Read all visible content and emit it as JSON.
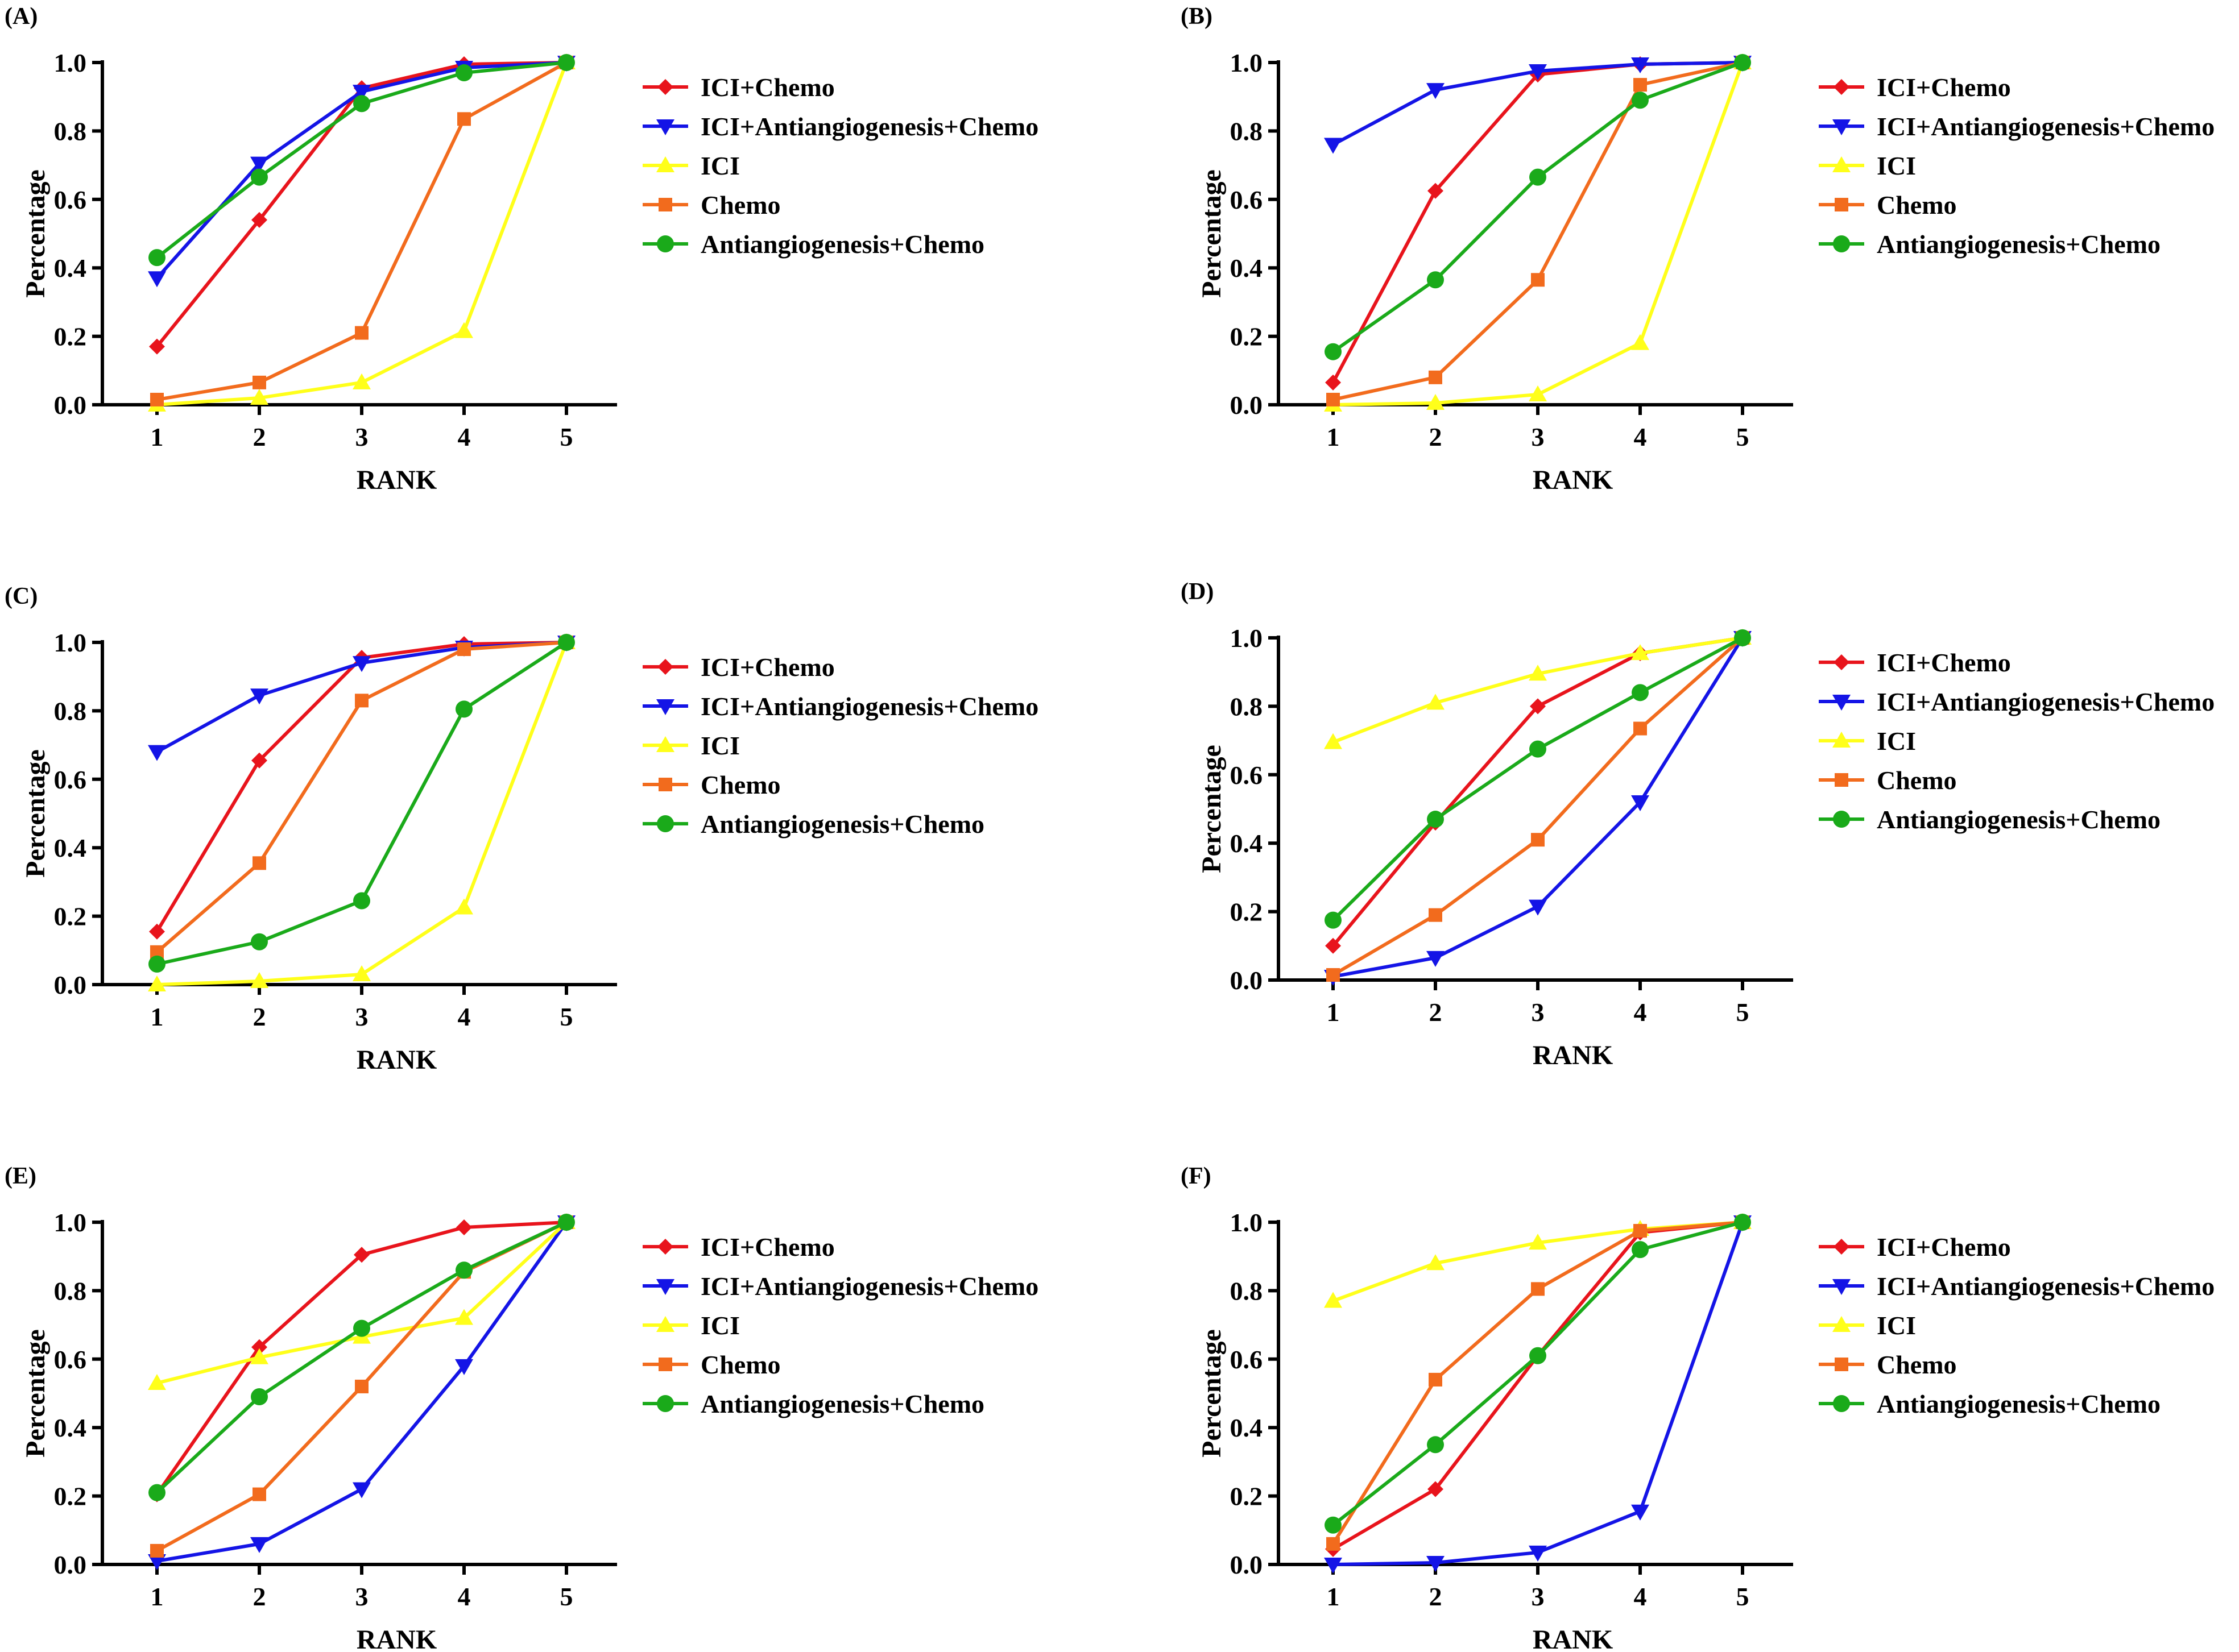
{
  "series_styles": [
    {
      "name": "ICI+Chemo",
      "color": "#e8141c",
      "marker": "diamond"
    },
    {
      "name": "ICI+Antiangiogenesis+Chemo",
      "color": "#1414e6",
      "marker": "triangle-down"
    },
    {
      "name": "ICI",
      "color": "#ffff1a",
      "marker": "triangle-up"
    },
    {
      "name": "Chemo",
      "color": "#f26b1d",
      "marker": "square"
    },
    {
      "name": "Antiangiogenesis+Chemo",
      "color": "#1aaa1a",
      "marker": "circle"
    }
  ],
  "chart_data": [
    {
      "panel": "(A)",
      "type": "line",
      "xlabel": "RANK",
      "ylabel": "Percentage",
      "x": [
        1,
        2,
        3,
        4,
        5
      ],
      "xticks": [
        "1",
        "2",
        "3",
        "4",
        "5"
      ],
      "yticks": [
        "0.0",
        "0.2",
        "0.4",
        "0.6",
        "0.8",
        "1.0"
      ],
      "ylim": [
        0,
        1
      ],
      "series": [
        {
          "name": "ICI+Chemo",
          "values": [
            0.17,
            0.54,
            0.925,
            0.995,
            1.0
          ]
        },
        {
          "name": "ICI+Antiangiogenesis+Chemo",
          "values": [
            0.37,
            0.705,
            0.915,
            0.985,
            1.0
          ]
        },
        {
          "name": "ICI",
          "values": [
            0.0,
            0.02,
            0.065,
            0.215,
            1.0
          ]
        },
        {
          "name": "Chemo",
          "values": [
            0.015,
            0.065,
            0.21,
            0.835,
            1.0
          ]
        },
        {
          "name": "Antiangiogenesis+Chemo",
          "values": [
            0.43,
            0.665,
            0.88,
            0.97,
            1.0
          ]
        }
      ]
    },
    {
      "panel": "(B)",
      "type": "line",
      "xlabel": "RANK",
      "ylabel": "Percentage",
      "x": [
        1,
        2,
        3,
        4,
        5
      ],
      "xticks": [
        "1",
        "2",
        "3",
        "4",
        "5"
      ],
      "yticks": [
        "0.0",
        "0.2",
        "0.4",
        "0.6",
        "0.8",
        "1.0"
      ],
      "ylim": [
        0,
        1
      ],
      "series": [
        {
          "name": "ICI+Chemo",
          "values": [
            0.065,
            0.625,
            0.965,
            0.995,
            1.0
          ]
        },
        {
          "name": "ICI+Antiangiogenesis+Chemo",
          "values": [
            0.76,
            0.92,
            0.975,
            0.995,
            1.0
          ]
        },
        {
          "name": "ICI",
          "values": [
            0.0,
            0.005,
            0.03,
            0.18,
            1.0
          ]
        },
        {
          "name": "Chemo",
          "values": [
            0.015,
            0.08,
            0.365,
            0.935,
            1.0
          ]
        },
        {
          "name": "Antiangiogenesis+Chemo",
          "values": [
            0.155,
            0.365,
            0.665,
            0.89,
            1.0
          ]
        }
      ]
    },
    {
      "panel": "(C)",
      "type": "line",
      "xlabel": "RANK",
      "ylabel": "Percentage",
      "x": [
        1,
        2,
        3,
        4,
        5
      ],
      "xticks": [
        "1",
        "2",
        "3",
        "4",
        "5"
      ],
      "yticks": [
        "0.0",
        "0.2",
        "0.4",
        "0.6",
        "0.8",
        "1.0"
      ],
      "ylim": [
        0,
        1
      ],
      "series": [
        {
          "name": "ICI+Chemo",
          "values": [
            0.155,
            0.655,
            0.955,
            0.995,
            1.0
          ]
        },
        {
          "name": "ICI+Antiangiogenesis+Chemo",
          "values": [
            0.68,
            0.845,
            0.94,
            0.985,
            1.0
          ]
        },
        {
          "name": "ICI",
          "values": [
            0.0,
            0.01,
            0.03,
            0.225,
            1.0
          ]
        },
        {
          "name": "Chemo",
          "values": [
            0.095,
            0.355,
            0.83,
            0.98,
            1.0
          ]
        },
        {
          "name": "Antiangiogenesis+Chemo",
          "values": [
            0.06,
            0.125,
            0.245,
            0.805,
            1.0
          ]
        }
      ]
    },
    {
      "panel": "(D)",
      "type": "line",
      "xlabel": "RANK",
      "ylabel": "Percentage",
      "x": [
        1,
        2,
        3,
        4,
        5
      ],
      "xticks": [
        "1",
        "2",
        "3",
        "4",
        "5"
      ],
      "yticks": [
        "0.0",
        "0.2",
        "0.4",
        "0.6",
        "0.8",
        "1.0"
      ],
      "ylim": [
        0,
        1
      ],
      "series": [
        {
          "name": "ICI+Chemo",
          "values": [
            0.1,
            0.46,
            0.8,
            0.955,
            1.0
          ]
        },
        {
          "name": "ICI+Antiangiogenesis+Chemo",
          "values": [
            0.01,
            0.065,
            0.215,
            0.52,
            1.0
          ]
        },
        {
          "name": "ICI",
          "values": [
            0.695,
            0.81,
            0.895,
            0.955,
            1.0
          ]
        },
        {
          "name": "Chemo",
          "values": [
            0.015,
            0.19,
            0.41,
            0.735,
            1.0
          ]
        },
        {
          "name": "Antiangiogenesis+Chemo",
          "values": [
            0.175,
            0.47,
            0.675,
            0.84,
            1.0
          ]
        }
      ]
    },
    {
      "panel": "(E)",
      "type": "line",
      "xlabel": "RANK",
      "ylabel": "Percentage",
      "x": [
        1,
        2,
        3,
        4,
        5
      ],
      "xticks": [
        "1",
        "2",
        "3",
        "4",
        "5"
      ],
      "yticks": [
        "0.0",
        "0.2",
        "0.4",
        "0.6",
        "0.8",
        "1.0"
      ],
      "ylim": [
        0,
        1
      ],
      "series": [
        {
          "name": "ICI+Chemo",
          "values": [
            0.205,
            0.635,
            0.905,
            0.985,
            1.0
          ]
        },
        {
          "name": "ICI+Antiangiogenesis+Chemo",
          "values": [
            0.01,
            0.06,
            0.22,
            0.58,
            1.0
          ]
        },
        {
          "name": "ICI",
          "values": [
            0.53,
            0.605,
            0.665,
            0.72,
            1.0
          ]
        },
        {
          "name": "Chemo",
          "values": [
            0.04,
            0.205,
            0.52,
            0.855,
            1.0
          ]
        },
        {
          "name": "Antiangiogenesis+Chemo",
          "values": [
            0.21,
            0.49,
            0.69,
            0.86,
            1.0
          ]
        }
      ]
    },
    {
      "panel": "(F)",
      "type": "line",
      "xlabel": "RANK",
      "ylabel": "Percentage",
      "x": [
        1,
        2,
        3,
        4,
        5
      ],
      "xticks": [
        "1",
        "2",
        "3",
        "4",
        "5"
      ],
      "yticks": [
        "0.0",
        "0.2",
        "0.4",
        "0.6",
        "0.8",
        "1.0"
      ],
      "ylim": [
        0,
        1
      ],
      "series": [
        {
          "name": "ICI+Chemo",
          "values": [
            0.045,
            0.22,
            0.61,
            0.97,
            1.0
          ]
        },
        {
          "name": "ICI+Antiangiogenesis+Chemo",
          "values": [
            0.0,
            0.005,
            0.035,
            0.155,
            1.0
          ]
        },
        {
          "name": "ICI",
          "values": [
            0.77,
            0.88,
            0.94,
            0.98,
            1.0
          ]
        },
        {
          "name": "Chemo",
          "values": [
            0.06,
            0.54,
            0.805,
            0.975,
            1.0
          ]
        },
        {
          "name": "Antiangiogenesis+Chemo",
          "values": [
            0.115,
            0.35,
            0.61,
            0.92,
            1.0
          ]
        }
      ]
    }
  ]
}
